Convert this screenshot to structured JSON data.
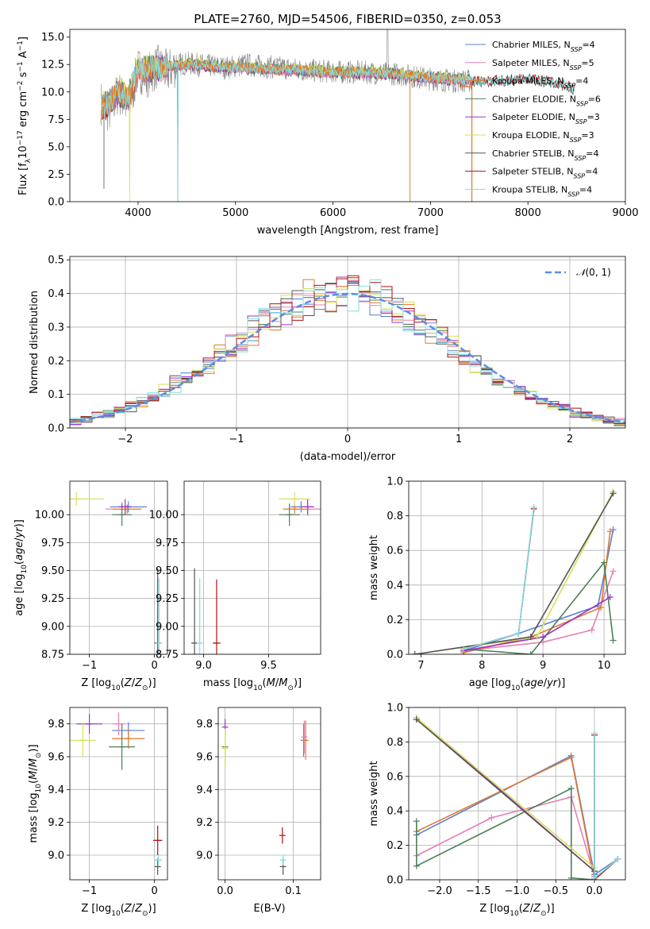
{
  "figure_title": "PLATE=2760, MJD=54506, FIBERID=0350, z=0.053",
  "colors": {
    "Chabrier MILES": "#5a7fd6",
    "Salpeter MILES": "#e57fb5",
    "Kroupa MILES": "#e07a2c",
    "Chabrier ELODIE": "#4d7f57",
    "Salpeter ELODIE": "#9b33c6",
    "Kroupa ELODIE": "#d8e05a",
    "Chabrier STELIB": "#555555",
    "Salpeter STELIB": "#b01010",
    "Kroupa STELIB": "#80dede",
    "data": "#888888",
    "normal": "#5a8ee0"
  },
  "chart_data": [
    {
      "id": "spectrum",
      "type": "line",
      "title": "PLATE=2760, MJD=54506, FIBERID=0350, z=0.053",
      "xlabel": "wavelength [Angstrom, rest frame]",
      "ylabel": "Flux [fλ10⁻¹⁷ erg cm⁻² s⁻¹ A⁻¹]",
      "xlim": [
        3300,
        9000
      ],
      "ylim": [
        0,
        15.7
      ],
      "xticks": [
        4000,
        5000,
        6000,
        7000,
        8000,
        9000
      ],
      "yticks": [
        0.0,
        2.5,
        5.0,
        7.5,
        10.0,
        12.5,
        15.0
      ],
      "legend_position": "top-right",
      "legend": [
        {
          "label": "Chabrier MILES, N",
          "sub": "SSP",
          "suffix": "=4"
        },
        {
          "label": "Salpeter MILES, N",
          "sub": "SSP",
          "suffix": "=5"
        },
        {
          "label": "Kroupa MILES, N",
          "sub": "SSP",
          "suffix": "=4"
        },
        {
          "label": "Chabrier ELODIE, N",
          "sub": "SSP",
          "suffix": "=6"
        },
        {
          "label": "Salpeter ELODIE, N",
          "sub": "SSP",
          "suffix": "=3"
        },
        {
          "label": "Kroupa ELODIE, N",
          "sub": "SSP",
          "suffix": "=3"
        },
        {
          "label": "Chabrier STELIB, N",
          "sub": "SSP",
          "suffix": "=4"
        },
        {
          "label": "Salpeter STELIB, N",
          "sub": "SSP",
          "suffix": "=4"
        },
        {
          "label": "Kroupa STELIB, N",
          "sub": "SSP",
          "suffix": "=4"
        }
      ],
      "data_trace": {
        "x": [
          3620,
          3700,
          3800,
          3900,
          4000,
          4100,
          4200,
          4300,
          4400,
          4500,
          4700,
          4900,
          5100,
          5300,
          5500,
          5700,
          5900,
          6100,
          6300,
          6500,
          6700,
          6900,
          7100,
          7300,
          7420
        ],
        "y": [
          9.0,
          8.2,
          10.0,
          8.5,
          12.0,
          11.5,
          12.3,
          11.8,
          12.5,
          12.6,
          12.4,
          12.2,
          12.5,
          12.3,
          12.2,
          12.0,
          11.9,
          11.8,
          11.8,
          11.7,
          11.6,
          11.3,
          11.1,
          11.0,
          11.0
        ]
      },
      "model_trace": {
        "x": [
          3620,
          3700,
          3800,
          3900,
          4000,
          4200,
          4400,
          4600,
          4800,
          5000,
          5500,
          6000,
          6500,
          7000,
          7500,
          7800,
          8000,
          8200,
          8400,
          8480
        ],
        "y": [
          8.5,
          9.0,
          10.0,
          9.5,
          12.0,
          12.2,
          12.4,
          12.5,
          12.3,
          12.2,
          12.0,
          11.8,
          11.7,
          11.3,
          11.0,
          11.1,
          11.2,
          11.0,
          10.6,
          10.2
        ]
      }
    },
    {
      "id": "residuals",
      "type": "line",
      "xlabel": "(data-model)/error",
      "ylabel": "Normed distribution",
      "xlim": [
        -2.5,
        2.5
      ],
      "ylim": [
        0,
        0.51
      ],
      "xticks": [
        -2,
        -1,
        0,
        1,
        2
      ],
      "yticks": [
        0.0,
        0.1,
        0.2,
        0.3,
        0.4,
        0.5
      ],
      "legend_label": "N(0,1)",
      "legend_position": "top-right",
      "grid": true
    },
    {
      "id": "age-vs-Z",
      "type": "scatter",
      "xlabel": "Z [log10(Z/Z⊙)]",
      "ylabel": "age [log10(age/yr)]",
      "xlim": [
        -1.3,
        0.2
      ],
      "ylim": [
        8.75,
        10.3
      ],
      "xticks": [
        -1,
        0
      ],
      "yticks": [
        8.75,
        9.0,
        9.25,
        9.5,
        9.75,
        10.0
      ],
      "points": [
        {
          "model": "Chabrier MILES",
          "x": -0.4,
          "y": 10.07,
          "xerr": 0.28,
          "yerr": 0.05
        },
        {
          "model": "Salpeter MILES",
          "x": -0.5,
          "y": 10.05,
          "xerr": 0.25,
          "yerr": 0.06
        },
        {
          "model": "Kroupa MILES",
          "x": -0.42,
          "y": 10.05,
          "xerr": 0.22,
          "yerr": 0.04
        },
        {
          "model": "Chabrier ELODIE",
          "x": -0.5,
          "y": 10.0,
          "xerr": 0.15,
          "yerr": 0.1
        },
        {
          "model": "Salpeter ELODIE",
          "x": -0.45,
          "y": 10.07,
          "xerr": 0.1,
          "yerr": 0.07
        },
        {
          "model": "Kroupa ELODIE",
          "x": -1.2,
          "y": 10.14,
          "xerr": 0.42,
          "yerr": 0.06
        },
        {
          "model": "Chabrier STELIB",
          "x": 0.05,
          "y": 8.85,
          "xerr": 0.02,
          "yerr": 0.67
        },
        {
          "model": "Salpeter STELIB",
          "x": 0.06,
          "y": 8.85,
          "xerr": 0.03,
          "yerr": 0.0
        },
        {
          "model": "Kroupa STELIB",
          "x": 0.07,
          "y": 8.85,
          "xerr": 0.04,
          "yerr": 0.58
        }
      ]
    },
    {
      "id": "age-vs-mass",
      "type": "scatter",
      "xlabel": "mass [log10(M/M⊙)]",
      "ylabel": "",
      "xlim": [
        8.85,
        9.9
      ],
      "ylim": [
        8.75,
        10.3
      ],
      "xticks": [
        9.0,
        9.5
      ],
      "yticks": [
        8.75,
        9.0,
        9.25,
        9.5,
        9.75,
        10.0
      ],
      "points": [
        {
          "model": "Chabrier MILES",
          "x": 9.75,
          "y": 10.07,
          "xerr": 0.08,
          "yerr": 0.05
        },
        {
          "model": "Salpeter MILES",
          "x": 9.8,
          "y": 10.05,
          "xerr": 0.1,
          "yerr": 0.06
        },
        {
          "model": "Kroupa MILES",
          "x": 9.7,
          "y": 10.05,
          "xerr": 0.09,
          "yerr": 0.04
        },
        {
          "model": "Chabrier ELODIE",
          "x": 9.66,
          "y": 10.0,
          "xerr": 0.08,
          "yerr": 0.1
        },
        {
          "model": "Salpeter ELODIE",
          "x": 9.8,
          "y": 10.07,
          "xerr": 0.05,
          "yerr": 0.07
        },
        {
          "model": "Kroupa ELODIE",
          "x": 9.7,
          "y": 10.14,
          "xerr": 0.12,
          "yerr": 0.06
        },
        {
          "model": "Chabrier STELIB",
          "x": 8.93,
          "y": 8.85,
          "xerr": 0.02,
          "yerr": 0.67
        },
        {
          "model": "Salpeter STELIB",
          "x": 9.1,
          "y": 8.85,
          "xerr": 0.03,
          "yerr": 0.57
        },
        {
          "model": "Kroupa STELIB",
          "x": 8.97,
          "y": 8.85,
          "xerr": 0.02,
          "yerr": 0.58
        }
      ]
    },
    {
      "id": "mass-weight-vs-age",
      "type": "line",
      "xlabel": "age [log10(age/yr)]",
      "ylabel": "mass weight",
      "xlim": [
        6.8,
        10.35
      ],
      "ylim": [
        0,
        1.0
      ],
      "xticks": [
        7,
        8,
        9,
        10
      ],
      "yticks": [
        0.0,
        0.2,
        0.4,
        0.6,
        0.8,
        1.0
      ],
      "series": [
        {
          "model": "Chabrier MILES",
          "x": [
            7.7,
            8.6,
            9.9,
            10.15
          ],
          "y": [
            0.02,
            0.12,
            0.28,
            0.72
          ]
        },
        {
          "model": "Salpeter MILES",
          "x": [
            7.7,
            9.0,
            9.8,
            10.15
          ],
          "y": [
            0.02,
            0.07,
            0.14,
            0.48
          ]
        },
        {
          "model": "Kroupa MILES",
          "x": [
            7.7,
            8.8,
            9.95,
            10.1
          ],
          "y": [
            0.01,
            0.1,
            0.27,
            0.71
          ]
        },
        {
          "model": "Chabrier ELODIE",
          "x": [
            7.7,
            8.8,
            10.0,
            10.15
          ],
          "y": [
            0.03,
            0.0,
            0.53,
            0.08
          ]
        },
        {
          "model": "Salpeter ELODIE",
          "x": [
            7.7,
            9.0,
            10.1
          ],
          "y": [
            0.02,
            0.1,
            0.33
          ]
        },
        {
          "model": "Kroupa ELODIE",
          "x": [
            6.9,
            8.9,
            10.15
          ],
          "y": [
            0.0,
            0.1,
            0.94
          ]
        },
        {
          "model": "Chabrier STELIB",
          "x": [
            6.9,
            8.8,
            10.15
          ],
          "y": [
            0.0,
            0.1,
            0.93
          ]
        },
        {
          "model": "Salpeter STELIB",
          "x": [
            7.7,
            8.6,
            8.85
          ],
          "y": [
            0.03,
            0.12,
            0.84
          ]
        },
        {
          "model": "Kroupa STELIB",
          "x": [
            7.7,
            8.6,
            8.85
          ],
          "y": [
            0.03,
            0.12,
            0.85
          ]
        }
      ]
    },
    {
      "id": "mass-vs-Z",
      "type": "scatter",
      "xlabel": "Z [log10(Z/Z⊙)]",
      "ylabel": "mass [log10(M/M⊙)]",
      "xlim": [
        -1.3,
        0.2
      ],
      "ylim": [
        8.85,
        9.9
      ],
      "xticks": [
        -1,
        0
      ],
      "yticks": [
        9.0,
        9.2,
        9.4,
        9.6,
        9.8
      ],
      "points": [
        {
          "model": "Chabrier MILES",
          "x": -0.4,
          "y": 9.76,
          "xerr": 0.25,
          "yerr": 0.05
        },
        {
          "model": "Salpeter MILES",
          "x": -0.55,
          "y": 9.8,
          "xerr": 0.1,
          "yerr": 0.07
        },
        {
          "model": "Kroupa MILES",
          "x": -0.4,
          "y": 9.71,
          "xerr": 0.25,
          "yerr": 0.06
        },
        {
          "model": "Chabrier ELODIE",
          "x": -0.5,
          "y": 9.66,
          "xerr": 0.2,
          "yerr": 0.14
        },
        {
          "model": "Salpeter ELODIE",
          "x": -1.0,
          "y": 9.8,
          "xerr": 0.2,
          "yerr": 0.06
        },
        {
          "model": "Kroupa ELODIE",
          "x": -1.1,
          "y": 9.7,
          "xerr": 0.2,
          "yerr": 0.1
        },
        {
          "model": "Chabrier STELIB",
          "x": 0.05,
          "y": 8.93,
          "xerr": 0.03,
          "yerr": 0.05
        },
        {
          "model": "Salpeter STELIB",
          "x": 0.05,
          "y": 9.09,
          "xerr": 0.07,
          "yerr": 0.09
        },
        {
          "model": "Kroupa STELIB",
          "x": 0.06,
          "y": 8.97,
          "xerr": 0.06,
          "yerr": 0.03
        }
      ]
    },
    {
      "id": "mass-vs-ebv",
      "type": "scatter",
      "xlabel": "E(B-V)",
      "ylabel": "",
      "xlim": [
        -0.01,
        0.14
      ],
      "ylim": [
        8.85,
        9.9
      ],
      "xticks": [
        0.0,
        0.1
      ],
      "yticks": [
        9.0,
        9.2,
        9.4,
        9.6,
        9.8
      ],
      "points": [
        {
          "model": "Chabrier MILES",
          "x": 0.115,
          "y": 9.7,
          "xerr": 0.0,
          "yerr": 0.1
        },
        {
          "model": "Salpeter MILES",
          "x": 0.116,
          "y": 9.72,
          "xerr": 0.0,
          "yerr": 0.1
        },
        {
          "model": "Kroupa MILES",
          "x": 0.118,
          "y": 9.7,
          "xerr": 0.0,
          "yerr": 0.12
        },
        {
          "model": "Chabrier ELODIE",
          "x": 0.0,
          "y": 9.66,
          "xerr": 0.0,
          "yerr": 0.1
        },
        {
          "model": "Salpeter ELODIE",
          "x": 0.0,
          "y": 9.78,
          "xerr": 0.0,
          "yerr": 0.05
        },
        {
          "model": "Kroupa ELODIE",
          "x": 0.0,
          "y": 9.65,
          "xerr": 0.0,
          "yerr": 0.12
        },
        {
          "model": "Chabrier STELIB",
          "x": 0.085,
          "y": 8.93,
          "xerr": 0.0,
          "yerr": 0.05
        },
        {
          "model": "Salpeter STELIB",
          "x": 0.084,
          "y": 9.12,
          "xerr": 0.0,
          "yerr": 0.05
        },
        {
          "model": "Kroupa STELIB",
          "x": 0.085,
          "y": 8.97,
          "xerr": 0.0,
          "yerr": 0.03
        }
      ]
    },
    {
      "id": "mass-weight-vs-Z",
      "type": "line",
      "xlabel": "Z [log10(Z/Z⊙)]",
      "ylabel": "mass weight",
      "xlim": [
        -2.4,
        0.4
      ],
      "ylim": [
        0,
        1.0
      ],
      "xticks": [
        -2.0,
        -1.5,
        -1.0,
        -0.5,
        0.0
      ],
      "yticks": [
        0.0,
        0.2,
        0.4,
        0.6,
        0.8,
        1.0
      ],
      "series": [
        {
          "model": "Chabrier MILES",
          "x": [
            -2.3,
            -0.3,
            0.0,
            0.3
          ],
          "y": [
            0.26,
            0.72,
            0.03,
            0.12
          ]
        },
        {
          "model": "Salpeter MILES",
          "x": [
            -2.3,
            -1.33,
            -0.3,
            0.0
          ],
          "y": [
            0.14,
            0.36,
            0.48,
            0.02
          ]
        },
        {
          "model": "Kroupa MILES",
          "x": [
            -2.3,
            -0.3,
            0.0
          ],
          "y": [
            0.28,
            0.71,
            0.01
          ]
        },
        {
          "model": "Chabrier ELODIE",
          "x": [
            -2.3,
            -2.3,
            -0.3,
            -0.3,
            0.0
          ],
          "y": [
            0.34,
            0.08,
            0.53,
            0.01,
            0.0
          ]
        },
        {
          "model": "Salpeter ELODIE",
          "x": [
            -2.3,
            0.0
          ],
          "y": [
            0.94,
            0.05
          ]
        },
        {
          "model": "Kroupa ELODIE",
          "x": [
            -2.3,
            0.0
          ],
          "y": [
            0.94,
            0.07
          ]
        },
        {
          "model": "Chabrier STELIB",
          "x": [
            -2.3,
            0.0
          ],
          "y": [
            0.93,
            0.05
          ]
        },
        {
          "model": "Salpeter STELIB",
          "x": [
            0.0,
            0.0,
            0.3
          ],
          "y": [
            0.84,
            0.0,
            0.12
          ]
        },
        {
          "model": "Kroupa STELIB",
          "x": [
            0.0,
            0.0,
            0.3
          ],
          "y": [
            0.85,
            0.01,
            0.12
          ]
        }
      ]
    }
  ]
}
